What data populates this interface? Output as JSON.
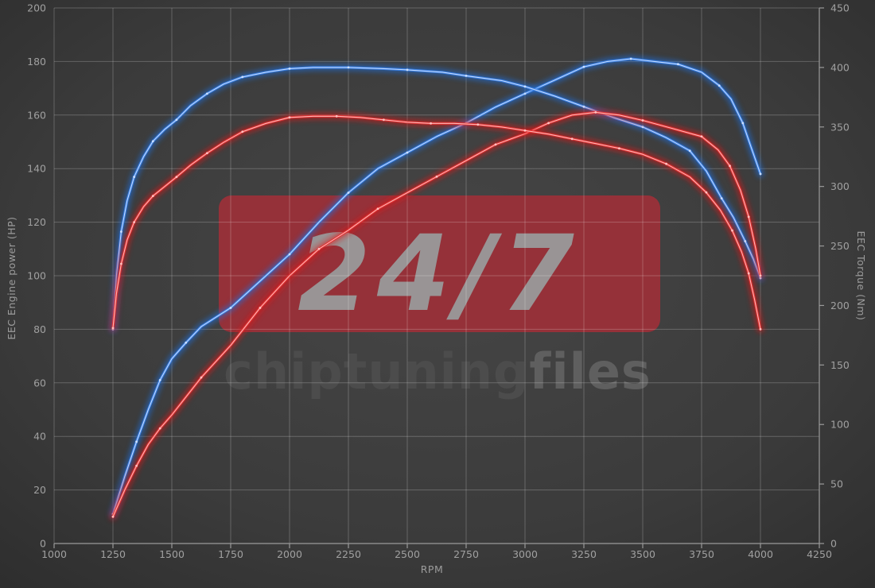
{
  "chart_data": {
    "type": "line",
    "title": "",
    "xlabel": "RPM",
    "ylabel_left": "EEC Engine power (HP)",
    "ylabel_right": "EEC Torque (Nm)",
    "x_range": [
      1000,
      4250
    ],
    "x_ticks": [
      1000,
      1250,
      1500,
      1750,
      2000,
      2250,
      2500,
      2750,
      3000,
      3250,
      3500,
      3750,
      4000,
      4250
    ],
    "y_left": {
      "range": [
        0,
        200
      ],
      "ticks": [
        0,
        20,
        40,
        60,
        80,
        100,
        120,
        140,
        160,
        180,
        200
      ]
    },
    "y_right": {
      "range": [
        0,
        450
      ],
      "ticks": [
        0,
        50,
        100,
        150,
        200,
        250,
        300,
        350,
        400,
        450
      ]
    },
    "grid": "on",
    "legend": "none",
    "series": [
      {
        "name": "power-blue-tuned",
        "axis": "left",
        "unit": "HP",
        "color": "#3b82e8",
        "glow": "#1f6fe0",
        "core": "#cfe2ff",
        "points": [
          [
            1250,
            11
          ],
          [
            1300,
            25
          ],
          [
            1350,
            38
          ],
          [
            1400,
            50
          ],
          [
            1450,
            61
          ],
          [
            1500,
            69
          ],
          [
            1560,
            75
          ],
          [
            1625,
            81
          ],
          [
            1750,
            88
          ],
          [
            1875,
            98
          ],
          [
            2000,
            108
          ],
          [
            2125,
            120
          ],
          [
            2250,
            131
          ],
          [
            2375,
            140
          ],
          [
            2500,
            146
          ],
          [
            2625,
            152
          ],
          [
            2750,
            157
          ],
          [
            2875,
            163
          ],
          [
            3000,
            168
          ],
          [
            3125,
            173
          ],
          [
            3250,
            178
          ],
          [
            3350,
            180
          ],
          [
            3450,
            181
          ],
          [
            3550,
            180
          ],
          [
            3650,
            179
          ],
          [
            3750,
            176
          ],
          [
            3825,
            171
          ],
          [
            3875,
            166
          ],
          [
            3925,
            157
          ],
          [
            3960,
            148
          ],
          [
            4000,
            138
          ]
        ]
      },
      {
        "name": "torque-blue-tuned",
        "axis": "right",
        "unit": "Nm",
        "color": "#3b82e8",
        "glow": "#1f6fe0",
        "core": "#cfe2ff",
        "points": [
          [
            1250,
            180
          ],
          [
            1265,
            225
          ],
          [
            1285,
            262
          ],
          [
            1310,
            288
          ],
          [
            1340,
            308
          ],
          [
            1380,
            325
          ],
          [
            1420,
            338
          ],
          [
            1470,
            348
          ],
          [
            1520,
            356
          ],
          [
            1580,
            368
          ],
          [
            1650,
            378
          ],
          [
            1720,
            386
          ],
          [
            1800,
            392
          ],
          [
            1900,
            396
          ],
          [
            2000,
            399
          ],
          [
            2100,
            400
          ],
          [
            2250,
            400
          ],
          [
            2400,
            399
          ],
          [
            2500,
            398
          ],
          [
            2650,
            396
          ],
          [
            2750,
            393
          ],
          [
            2900,
            389
          ],
          [
            3000,
            384
          ],
          [
            3125,
            376
          ],
          [
            3250,
            367
          ],
          [
            3375,
            358
          ],
          [
            3500,
            350
          ],
          [
            3600,
            341
          ],
          [
            3700,
            330
          ],
          [
            3770,
            313
          ],
          [
            3835,
            290
          ],
          [
            3885,
            274
          ],
          [
            3935,
            254
          ],
          [
            3970,
            239
          ],
          [
            4000,
            223
          ]
        ]
      },
      {
        "name": "power-red-original",
        "axis": "left",
        "unit": "HP",
        "color": "#e53030",
        "glow": "#e01818",
        "core": "#ffc4c4",
        "points": [
          [
            1250,
            10
          ],
          [
            1300,
            20
          ],
          [
            1350,
            29
          ],
          [
            1400,
            37
          ],
          [
            1450,
            43
          ],
          [
            1500,
            48
          ],
          [
            1625,
            62
          ],
          [
            1750,
            74
          ],
          [
            1875,
            88
          ],
          [
            2000,
            100
          ],
          [
            2125,
            110
          ],
          [
            2250,
            117
          ],
          [
            2375,
            125
          ],
          [
            2500,
            131
          ],
          [
            2625,
            137
          ],
          [
            2750,
            143
          ],
          [
            2875,
            149
          ],
          [
            3000,
            153
          ],
          [
            3100,
            157
          ],
          [
            3200,
            160
          ],
          [
            3300,
            161
          ],
          [
            3400,
            160
          ],
          [
            3500,
            158
          ],
          [
            3625,
            155
          ],
          [
            3750,
            152
          ],
          [
            3820,
            147
          ],
          [
            3870,
            141
          ],
          [
            3915,
            132
          ],
          [
            3950,
            122
          ],
          [
            3980,
            110
          ],
          [
            4000,
            100
          ]
        ]
      },
      {
        "name": "torque-red-original",
        "axis": "right",
        "unit": "Nm",
        "color": "#e53030",
        "glow": "#e01818",
        "core": "#ffc4c4",
        "points": [
          [
            1250,
            181
          ],
          [
            1265,
            210
          ],
          [
            1285,
            235
          ],
          [
            1310,
            255
          ],
          [
            1340,
            270
          ],
          [
            1380,
            283
          ],
          [
            1420,
            292
          ],
          [
            1470,
            300
          ],
          [
            1520,
            308
          ],
          [
            1580,
            318
          ],
          [
            1650,
            328
          ],
          [
            1720,
            337
          ],
          [
            1800,
            346
          ],
          [
            1900,
            353
          ],
          [
            2000,
            358
          ],
          [
            2100,
            359
          ],
          [
            2200,
            359
          ],
          [
            2300,
            358
          ],
          [
            2400,
            356
          ],
          [
            2500,
            354
          ],
          [
            2600,
            353
          ],
          [
            2700,
            353
          ],
          [
            2800,
            352
          ],
          [
            2900,
            350
          ],
          [
            3000,
            347
          ],
          [
            3100,
            344
          ],
          [
            3200,
            340
          ],
          [
            3300,
            336
          ],
          [
            3400,
            332
          ],
          [
            3500,
            327
          ],
          [
            3600,
            319
          ],
          [
            3700,
            308
          ],
          [
            3770,
            295
          ],
          [
            3830,
            280
          ],
          [
            3880,
            263
          ],
          [
            3920,
            245
          ],
          [
            3950,
            227
          ],
          [
            3975,
            205
          ],
          [
            4000,
            180
          ]
        ]
      }
    ]
  },
  "watermark": {
    "badge_text": "24/7",
    "badge_color": "#9c3038",
    "badge_text_color": "#9a9a9a",
    "brand_left": "chiptuning",
    "brand_right": "files",
    "brand_left_color": "#4c4c4c",
    "brand_right_color": "#5f5f5f"
  },
  "colors": {
    "background_center": "#464646",
    "background_edge": "#2c2c2c",
    "grid": "rgba(255,255,255,0.22)",
    "axis_line": "#9a9a9a",
    "tick_text": "#a0a0a0"
  }
}
